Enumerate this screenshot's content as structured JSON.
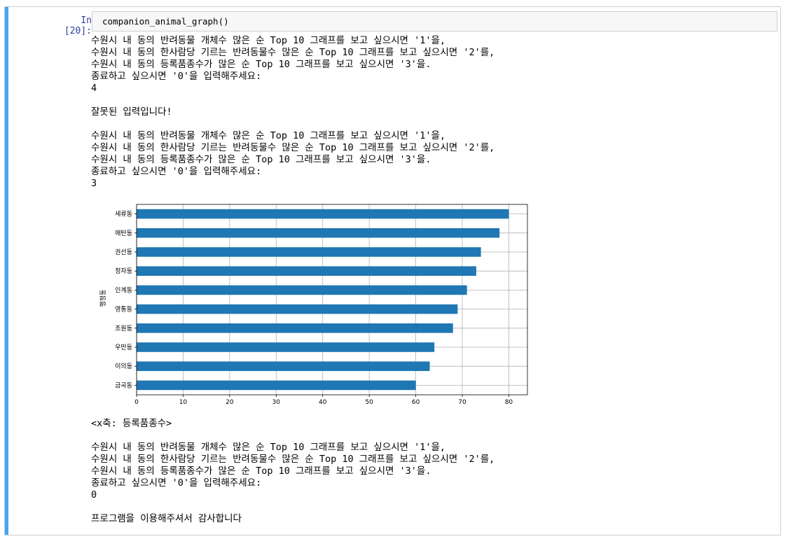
{
  "cell": {
    "prompt": "In [20]:",
    "code": "companion_animal_graph()"
  },
  "output": {
    "block1": [
      "수원시 내 동의 반려동물 개체수 많은 순 Top 10 그래프를 보고 싶으시면 '1'을,",
      "수원시 내 동의 한사람당 기르는 반려동물수 많은 순 Top 10 그래프를 보고 싶으시면 '2'를,",
      "수원시 내 동의 등록품종수가 많은 순 Top 10 그래프를 보고 싶으시면 '3'을.",
      "종료하고 싶으시면 '0'을 입력해주세요:"
    ],
    "input1": "4",
    "error": "잘못된 입력입니다!",
    "block2": [
      "수원시 내 동의 반려동물 개체수 많은 순 Top 10 그래프를 보고 싶으시면 '1'을,",
      "수원시 내 동의 한사람당 기르는 반려동물수 많은 순 Top 10 그래프를 보고 싶으시면 '2'를,",
      "수원시 내 동의 등록품종수가 많은 순 Top 10 그래프를 보고 싶으시면 '3'을.",
      "종료하고 싶으시면 '0'을 입력해주세요:"
    ],
    "input2": "3",
    "axis_note": "<x축: 등록품종수>",
    "block3": [
      "수원시 내 동의 반려동물 개체수 많은 순 Top 10 그래프를 보고 싶으시면 '1'을,",
      "수원시 내 동의 한사람당 기르는 반려동물수 많은 순 Top 10 그래프를 보고 싶으시면 '2'를,",
      "수원시 내 동의 등록품종수가 많은 순 Top 10 그래프를 보고 싶으시면 '3'을.",
      "종료하고 싶으시면 '0'을 입력해주세요:"
    ],
    "input3": "0",
    "goodbye": "프로그램을 이용해주셔서 감사합니다"
  },
  "colors": {
    "bar": "#1f77b4",
    "prompt": "#303f9f",
    "cell_accent": "#42a5f5"
  },
  "chart_data": {
    "type": "bar",
    "orientation": "horizontal",
    "categories": [
      "세류동",
      "매탄동",
      "권선동",
      "정자동",
      "인계동",
      "영통동",
      "조원동",
      "우만동",
      "이의동",
      "금곡동"
    ],
    "values": [
      80,
      78,
      74,
      73,
      71,
      69,
      68,
      64,
      63,
      60
    ],
    "ylabel": "행정동",
    "xlim": [
      0,
      84
    ],
    "xticks": [
      0,
      10,
      20,
      30,
      40,
      50,
      60,
      70,
      80
    ],
    "grid": true,
    "legend": "none"
  }
}
